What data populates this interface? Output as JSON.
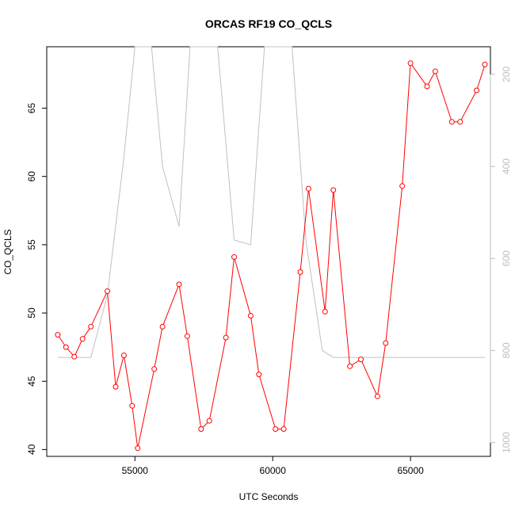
{
  "chart_data": {
    "type": "line",
    "title": "ORCAS RF19 CO_QCLS",
    "xlabel": "UTC Seconds",
    "ylabel": "CO_QCLS",
    "xlim": [
      51800,
      67900
    ],
    "ylim": [
      39.5,
      69.5
    ],
    "x_ticks": [
      55000,
      60000,
      65000
    ],
    "x_tick_labels": [
      "55000",
      "60000",
      "65000"
    ],
    "y_ticks": [
      40,
      45,
      50,
      55,
      60,
      65
    ],
    "y_tick_labels": [
      "40",
      "45",
      "50",
      "55",
      "60",
      "65"
    ],
    "y2_lim": [
      1030,
      140
    ],
    "y2_ticks": [
      200,
      400,
      600,
      800,
      1000
    ],
    "y2_tick_labels": [
      "200",
      "400",
      "600",
      "800",
      "1000"
    ],
    "grid": false,
    "series": [
      {
        "color": "#ff0000",
        "markers": "open-circle",
        "axis": "left",
        "x": [
          52200,
          52500,
          52800,
          53100,
          53400,
          54000,
          54300,
          54600,
          54900,
          55100,
          55700,
          56000,
          56600,
          56900,
          57400,
          57700,
          58300,
          58600,
          59200,
          59500,
          60100,
          60400,
          61000,
          61300,
          61900,
          62200,
          62800,
          63200,
          63800,
          64100,
          64700,
          65000,
          65600,
          65900,
          66500,
          66800,
          67400,
          67700
        ],
        "y": [
          48.4,
          47.5,
          46.8,
          48.1,
          49.0,
          51.6,
          44.6,
          46.9,
          43.2,
          40.1,
          45.9,
          49.0,
          52.1,
          48.3,
          41.5,
          42.1,
          48.2,
          54.1,
          49.8,
          45.5,
          41.5,
          41.5,
          53.0,
          59.1,
          50.1,
          59.0,
          46.1,
          46.6,
          43.9,
          47.8,
          59.3,
          68.3,
          66.6,
          67.7,
          64.0,
          64.0,
          66.3,
          68.2
        ]
      },
      {
        "color": "#c0c0c0",
        "markers": "none",
        "axis": "right",
        "x": [
          52200,
          53400,
          54000,
          54600,
          55000,
          55600,
          56000,
          56600,
          57000,
          57600,
          58000,
          58600,
          59200,
          59700,
          60200,
          60700,
          61200,
          61800,
          62200,
          63000,
          64000,
          65000,
          66000,
          67000,
          67700
        ],
        "y": [
          815,
          815,
          680,
          380,
          140,
          140,
          400,
          530,
          140,
          140,
          140,
          560,
          570,
          140,
          140,
          140,
          560,
          800,
          815,
          815,
          815,
          815,
          815,
          815,
          815
        ]
      }
    ]
  }
}
